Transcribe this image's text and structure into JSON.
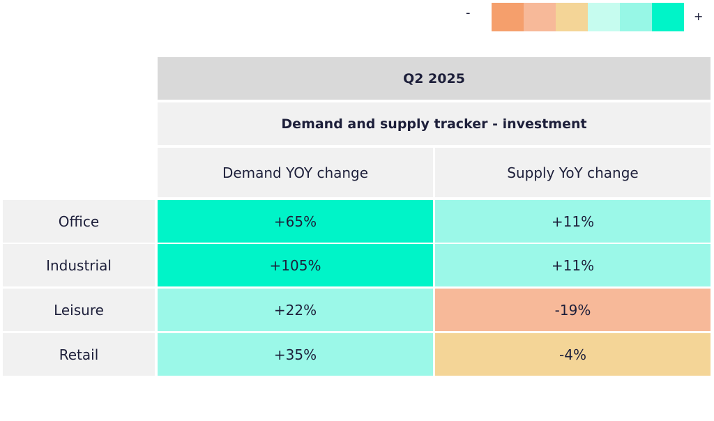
{
  "legend": {
    "minus_label": "-",
    "plus_label": "+",
    "swatches": [
      "#f59f6c",
      "#f7b999",
      "#f4d597",
      "#c6fcef",
      "#97f7e6",
      "#00f4c8"
    ]
  },
  "chart_data": {
    "type": "table",
    "title": "Q2 2025",
    "subtitle": "Demand and supply tracker - investment",
    "columns": [
      "Demand YOY change",
      "Supply YoY change"
    ],
    "rows": [
      {
        "label": "Office",
        "demand": "+65%",
        "supply": "+11%",
        "demand_color": "#00f4c8",
        "supply_color": "#9bf8e8"
      },
      {
        "label": "Industrial",
        "demand": "+105%",
        "supply": "+11%",
        "demand_color": "#00f4c8",
        "supply_color": "#9bf8e8"
      },
      {
        "label": "Leisure",
        "demand": "+22%",
        "supply": "-19%",
        "demand_color": "#9bf8e8",
        "supply_color": "#f7b999"
      },
      {
        "label": "Retail",
        "demand": "+35%",
        "supply": "-4%",
        "demand_color": "#9bf8e8",
        "supply_color": "#f4d597"
      }
    ]
  }
}
